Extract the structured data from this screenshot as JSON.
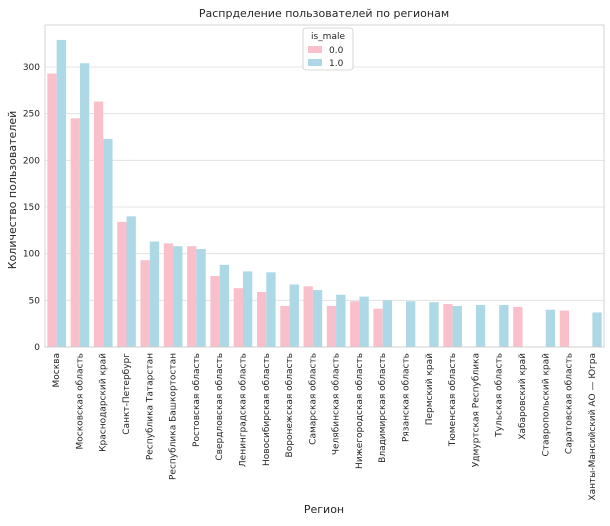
{
  "chart_data": {
    "type": "bar",
    "title": "Распрделение пользователей по регионам",
    "xlabel": "Регион",
    "ylabel": "Количество пользователей",
    "ylim": [
      0,
      345
    ],
    "yticks": [
      0,
      50,
      100,
      150,
      200,
      250,
      300
    ],
    "grid": true,
    "legend": {
      "title": "is_male",
      "placement": "top-center"
    },
    "categories": [
      "Москва",
      "Московская область",
      "Краснодарский край",
      "Санкт-Петербург",
      "Республика Татарстан",
      "Республика Башкортостан",
      "Ростовская область",
      "Свердловская область",
      "Ленинградская область",
      "Новосибирская область",
      "Воронежская область",
      "Самарская область",
      "Челябинская область",
      "Нижегородская область",
      "Владимирская область",
      "Рязанская область",
      "Пермский край",
      "Тюменская область",
      "Удмуртская Республика",
      "Тульская область",
      "Хабаровский край",
      "Ставропольский край",
      "Саратовская область",
      "Ханты-Мансийский АО — Югра"
    ],
    "series": [
      {
        "name": "0.0",
        "color": "#f9c0cb",
        "values": [
          293,
          245,
          263,
          134,
          93,
          111,
          108,
          76,
          63,
          59,
          44,
          65,
          44,
          49,
          41,
          0,
          0,
          46,
          0,
          0,
          43,
          0,
          39,
          0
        ]
      },
      {
        "name": "1.0",
        "color": "#add8e6",
        "values": [
          329,
          304,
          223,
          140,
          113,
          108,
          105,
          88,
          81,
          80,
          67,
          61,
          56,
          54,
          50,
          49,
          48,
          44,
          45,
          45,
          0,
          40,
          0,
          37
        ]
      }
    ]
  }
}
